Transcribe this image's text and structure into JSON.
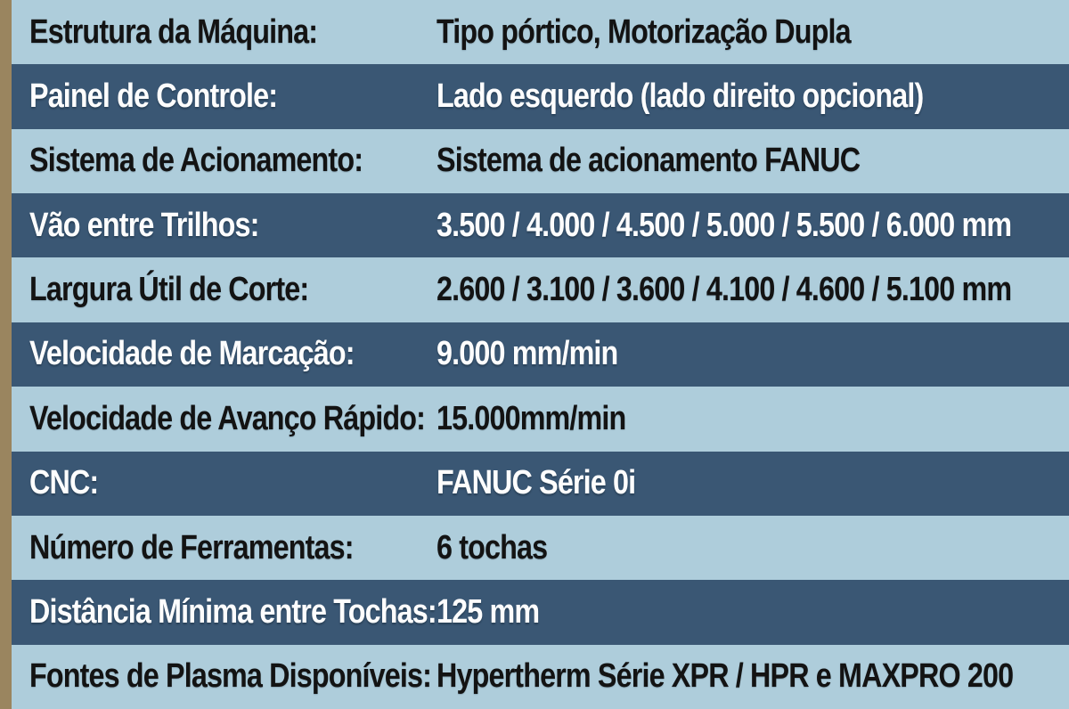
{
  "table": {
    "rows": [
      {
        "label": "Estrutura da Máquina:",
        "value": "Tipo pórtico, Motorização Dupla"
      },
      {
        "label": "Painel de Controle:",
        "value": "Lado esquerdo (lado direito opcional)"
      },
      {
        "label": "Sistema de Acionamento:",
        "value": "Sistema de acionamento FANUC"
      },
      {
        "label": "Vão entre Trilhos:",
        "value": "3.500 / 4.000 / 4.500 / 5.000 / 5.500 / 6.000 mm"
      },
      {
        "label": "Largura Útil de Corte:",
        "value": "2.600 / 3.100 / 3.600 / 4.100 / 4.600 / 5.100 mm"
      },
      {
        "label": "Velocidade de Marcação:",
        "value": "9.000 mm/min"
      },
      {
        "label": "Velocidade de Avanço Rápido:",
        "value": "15.000mm/min"
      },
      {
        "label": "CNC:",
        "value": "FANUC Série 0i"
      },
      {
        "label": "Número de Ferramentas:",
        "value": "6 tochas"
      },
      {
        "label": "Distância Mínima entre Tochas:",
        "value": "125 mm"
      },
      {
        "label": "Fontes de Plasma Disponíveis:",
        "value": "Hypertherm Série XPR / HPR e MAXPRO 200"
      }
    ]
  },
  "colors": {
    "row_light": "#aecddb",
    "row_dark": "#3a5774",
    "accent_stripe": "#9a855f",
    "text_dark": "#131313",
    "text_light": "#fdfdfd"
  }
}
